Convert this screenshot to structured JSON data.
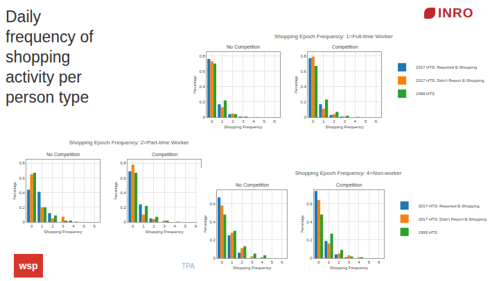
{
  "slide": {
    "title": "Daily frequency of shopping activity per person type",
    "logo": "INRO",
    "footer_logo": "wsp",
    "footer": "TPA",
    "headings": [
      "Shopping Epoch Frequency: 1=Full-time Worker",
      "Shopping Epoch Frequency: 2=Part-time Worker",
      "Shopping Epoch Frequency: 4=Non-worker"
    ]
  },
  "chart_data": [
    {
      "type": "bar",
      "title": "No Competition",
      "x_label": "Shopping Frequency",
      "y_label": "Percentage",
      "x": [
        0,
        1,
        2,
        3,
        4,
        5,
        6
      ],
      "xlim": [
        -0.5,
        6.5
      ],
      "xticks": [
        0,
        1,
        2,
        3,
        4,
        5,
        6
      ],
      "ylim": [
        0,
        0.85
      ],
      "yticks": [
        0,
        0.2,
        0.4,
        0.6,
        0.8
      ],
      "grid": true,
      "legend": "right",
      "series": [
        {
          "name": "2017 HTS: Reported E-Shopping",
          "color": "#1f77b4",
          "values": [
            0.76,
            0.17,
            0.04,
            0.01,
            0,
            0,
            0
          ]
        },
        {
          "name": "2017 HTS: Didn't Report E-Shopping",
          "color": "#ff7f0e",
          "values": [
            0.73,
            0.13,
            0.05,
            0.005,
            0,
            0,
            0
          ]
        },
        {
          "name": "1999 HTS",
          "color": "#2ca02c",
          "values": [
            0.7,
            0.22,
            0.04,
            0.01,
            0.003,
            0,
            0
          ]
        }
      ]
    },
    {
      "type": "bar",
      "title": "Competition",
      "x_label": "Shopping Frequency",
      "y_label": "Percentage",
      "x": [
        0,
        1,
        2,
        3,
        4,
        5,
        6
      ],
      "xlim": [
        -0.5,
        6.5
      ],
      "xticks": [
        0,
        1,
        2,
        3,
        4,
        5,
        6
      ],
      "ylim": [
        0,
        0.85
      ],
      "yticks": [
        0,
        0.2,
        0.4,
        0.6,
        0.8
      ],
      "grid": true,
      "series": [
        {
          "name": "2017 HTS: Reported E-Shopping",
          "color": "#1f77b4",
          "values": [
            0.77,
            0.17,
            0.03,
            0.01,
            0,
            0,
            0
          ]
        },
        {
          "name": "2017 HTS: Didn't Report E-Shopping",
          "color": "#ff7f0e",
          "values": [
            0.79,
            0.11,
            0.04,
            0.01,
            0,
            0,
            0
          ]
        },
        {
          "name": "1999 HTS",
          "color": "#2ca02c",
          "values": [
            0.67,
            0.23,
            0.07,
            0.02,
            0.005,
            0,
            0
          ]
        }
      ]
    },
    {
      "type": "bar",
      "title": "No Competition",
      "x_label": "Shopping Frequency",
      "y_label": "Percentage",
      "x": [
        0,
        1,
        2,
        3,
        4,
        5,
        6
      ],
      "xlim": [
        -0.5,
        6.5
      ],
      "xticks": [
        0,
        1,
        2,
        3,
        4,
        5,
        6
      ],
      "ylim": [
        0,
        0.85
      ],
      "yticks": [
        0,
        0.2,
        0.4,
        0.6,
        0.8
      ],
      "grid": true,
      "series": [
        {
          "name": "2017 HTS: Reported E-Shopping",
          "color": "#1f77b4",
          "values": [
            0.44,
            0.41,
            0.12,
            0,
            0.02,
            0,
            0
          ]
        },
        {
          "name": "2017 HTS: Didn't Report E-Shopping",
          "color": "#ff7f0e",
          "values": [
            0.65,
            0.2,
            0.05,
            0.07,
            0,
            0,
            0
          ]
        },
        {
          "name": "1999 HTS",
          "color": "#2ca02c",
          "values": [
            0.67,
            0.2,
            0.09,
            0.02,
            0.005,
            0,
            0
          ]
        }
      ]
    },
    {
      "type": "bar",
      "title": "Competition",
      "x_label": "Shopping Frequency",
      "y_label": "Percentage",
      "x": [
        0,
        1,
        2,
        3,
        4,
        5,
        6
      ],
      "xlim": [
        -0.5,
        6.5
      ],
      "xticks": [
        0,
        1,
        2,
        3,
        4,
        5,
        6
      ],
      "ylim": [
        0,
        0.85
      ],
      "yticks": [
        0,
        0.2,
        0.4,
        0.6,
        0.8
      ],
      "grid": true,
      "series": [
        {
          "name": "2017 HTS: Reported E-Shopping",
          "color": "#1f77b4",
          "values": [
            0.69,
            0.24,
            0.05,
            0,
            0,
            0,
            0
          ]
        },
        {
          "name": "2017 HTS: Didn't Report E-Shopping",
          "color": "#ff7f0e",
          "values": [
            0.78,
            0.1,
            0.04,
            0.02,
            0,
            0,
            0
          ]
        },
        {
          "name": "1999 HTS",
          "color": "#2ca02c",
          "values": [
            0.67,
            0.22,
            0.07,
            0.02,
            0.005,
            0,
            0
          ]
        }
      ]
    },
    {
      "type": "bar",
      "title": "No Competition",
      "x_label": "Shopping Frequency",
      "y_label": "Percentage",
      "x": [
        0,
        1,
        2,
        3,
        4,
        5,
        6
      ],
      "xlim": [
        -0.5,
        6.5
      ],
      "xticks": [
        0,
        1,
        2,
        3,
        4,
        5,
        6
      ],
      "ylim": [
        0,
        0.75
      ],
      "yticks": [
        0,
        0.2,
        0.4,
        0.6
      ],
      "grid": true,
      "legend": "right",
      "series": [
        {
          "name": "2017 HTS: Reported E-Shopping",
          "color": "#1f77b4",
          "values": [
            0.67,
            0.25,
            0.06,
            0,
            0,
            0,
            0
          ]
        },
        {
          "name": "2017 HTS: Didn't Report E-Shopping",
          "color": "#ff7f0e",
          "values": [
            0.58,
            0.28,
            0.11,
            0.02,
            0.01,
            0,
            0
          ]
        },
        {
          "name": "1999 HTS",
          "color": "#2ca02c",
          "values": [
            0.48,
            0.3,
            0.13,
            0.05,
            0.03,
            0,
            0
          ]
        }
      ]
    },
    {
      "type": "bar",
      "title": "Competition",
      "x_label": "Shopping Frequency",
      "y_label": "Percentage",
      "x": [
        0,
        1,
        2,
        3,
        4,
        5,
        6
      ],
      "xlim": [
        -0.5,
        6.5
      ],
      "xticks": [
        0,
        1,
        2,
        3,
        4,
        5,
        6
      ],
      "ylim": [
        0,
        0.75
      ],
      "yticks": [
        0,
        0.2,
        0.4,
        0.6
      ],
      "grid": true,
      "series": [
        {
          "name": "2017 HTS: Reported E-Shopping",
          "color": "#1f77b4",
          "values": [
            0.74,
            0.19,
            0.04,
            0.01,
            0,
            0,
            0
          ]
        },
        {
          "name": "2017 HTS: Didn't Report E-Shopping",
          "color": "#ff7f0e",
          "values": [
            0.64,
            0.16,
            0.05,
            0.03,
            0.01,
            0,
            0
          ]
        },
        {
          "name": "1999 HTS",
          "color": "#2ca02c",
          "values": [
            0.48,
            0.27,
            0.09,
            0.02,
            0.01,
            0,
            0
          ]
        }
      ]
    }
  ]
}
